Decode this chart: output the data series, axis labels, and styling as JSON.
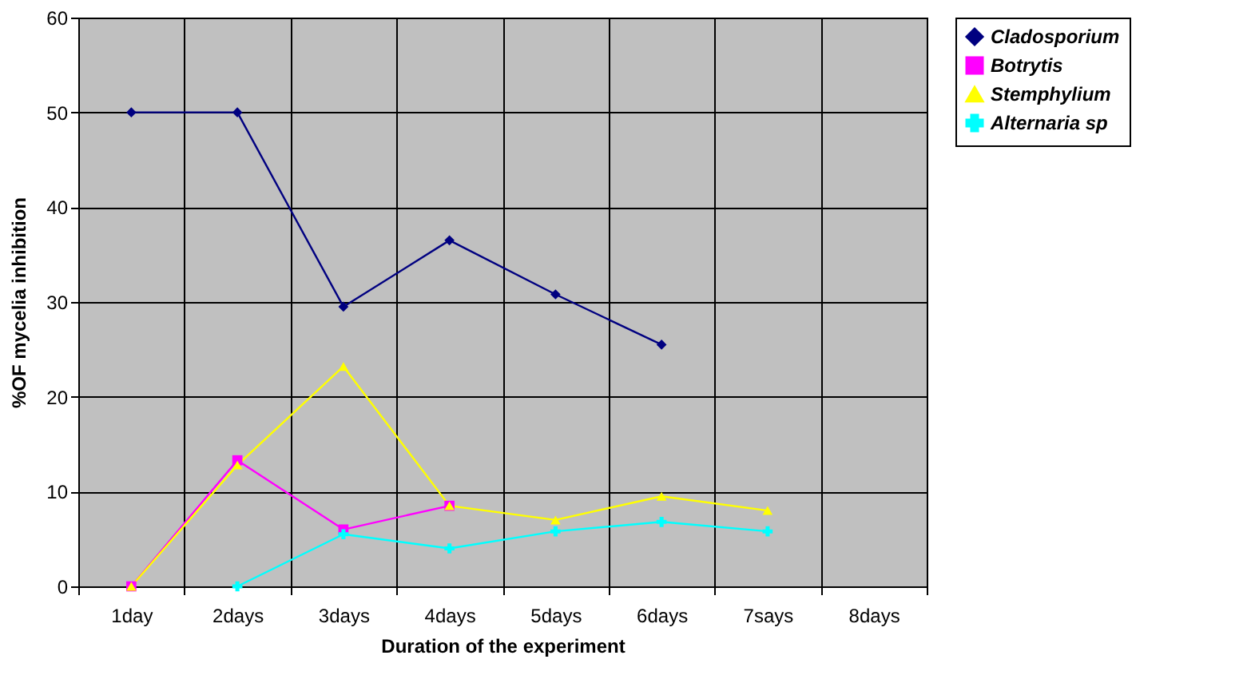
{
  "chart_data": {
    "type": "line",
    "xlabel": "Duration of the experiment",
    "ylabel": "%OF mycelia inhibition",
    "categories": [
      "1day",
      "2days",
      "3days",
      "4days",
      "5days",
      "6days",
      "7says",
      "8days"
    ],
    "series": [
      {
        "name": "Cladosporium",
        "color": "#000080",
        "marker": "diamond",
        "values": [
          50,
          50,
          29.5,
          36.5,
          30.8,
          25.5,
          null,
          null
        ]
      },
      {
        "name": "Botrytis",
        "color": "#ff00ff",
        "marker": "square",
        "values": [
          0,
          13.3,
          6,
          8.5,
          null,
          null,
          null,
          null
        ]
      },
      {
        "name": "Stemphylium",
        "color": "#ffff00",
        "marker": "triangle",
        "values": [
          0,
          12.8,
          23.2,
          8.5,
          7,
          9.5,
          8,
          null
        ]
      },
      {
        "name": "Alternaria sp",
        "color": "#00ffff",
        "marker": "cross",
        "values": [
          null,
          0,
          5.5,
          4,
          5.8,
          6.8,
          5.8,
          null
        ]
      }
    ],
    "ylim": [
      0,
      60
    ],
    "yticks": [
      0,
      10,
      20,
      30,
      40,
      50,
      60
    ],
    "grid": true,
    "legend": "right"
  }
}
